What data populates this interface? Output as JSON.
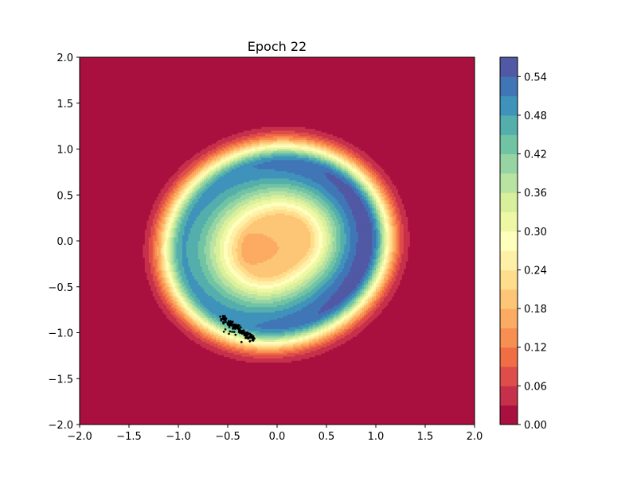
{
  "chart_data": {
    "type": "heatmap",
    "title": "Epoch 22",
    "xlabel": "",
    "ylabel": "",
    "xlim": [
      -2.0,
      2.0
    ],
    "ylim": [
      -2.0,
      2.0
    ],
    "x_ticks": [
      -2.0,
      -1.5,
      -1.0,
      -0.5,
      0.0,
      0.5,
      1.0,
      1.5,
      2.0
    ],
    "x_tick_labels": [
      "−2.0",
      "−1.5",
      "−1.0",
      "−0.5",
      "0.0",
      "0.5",
      "1.0",
      "1.5",
      "2.0"
    ],
    "y_ticks": [
      -2.0,
      -1.5,
      -1.0,
      -0.5,
      0.0,
      0.5,
      1.0,
      1.5,
      2.0
    ],
    "y_tick_labels": [
      "−2.0",
      "−1.5",
      "−1.0",
      "−0.5",
      "0.0",
      "0.5",
      "1.0",
      "1.5",
      "2.0"
    ],
    "colormap": "Spectral",
    "colorbar": {
      "min": 0.0,
      "max": 0.57,
      "level_step": 0.03,
      "ticks": [
        0.0,
        0.06,
        0.12,
        0.18,
        0.24,
        0.3,
        0.36,
        0.42,
        0.48,
        0.54
      ],
      "tick_labels": [
        "0.00",
        "0.06",
        "0.12",
        "0.18",
        "0.24",
        "0.30",
        "0.36",
        "0.42",
        "0.48",
        "0.54"
      ],
      "colors": [
        "#a9103f",
        "#c6304a",
        "#df4d4b",
        "#f06e44",
        "#f88f52",
        "#fcab62",
        "#fdc677",
        "#fede8c",
        "#fff0a8",
        "#fefebd",
        "#eef8a4",
        "#d8ef9c",
        "#b9e3a1",
        "#97d4a4",
        "#70c4a4",
        "#54aeac",
        "#3f93bb",
        "#4076b6",
        "#5159a5"
      ]
    },
    "density_field": {
      "description": "ring-shaped density: peak along a ring of radius ~0.9 around center (0.02,-0.08), local bump at center",
      "ring_center": [
        0.02,
        -0.08
      ],
      "ring_radius": 0.92,
      "ring_peak_value": 0.56,
      "center_value": 0.2
    },
    "samples": {
      "color": "#000000",
      "cluster_center": [
        -0.38,
        -0.98
      ],
      "count": 160
    }
  }
}
